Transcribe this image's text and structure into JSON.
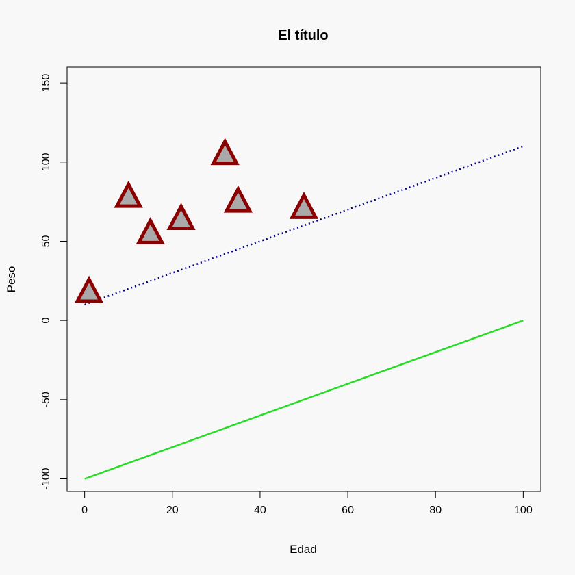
{
  "chart_data": {
    "type": "scatter",
    "title": "El título",
    "xlabel": "Edad",
    "ylabel": "Peso",
    "xlim": [
      -4,
      104
    ],
    "ylim": [
      -108,
      160
    ],
    "x_ticks": [
      0,
      20,
      40,
      60,
      80,
      100
    ],
    "y_ticks": [
      -100,
      -50,
      0,
      50,
      100,
      150
    ],
    "grid": false,
    "points": {
      "x": [
        1,
        10,
        15,
        22,
        32,
        35,
        50
      ],
      "y": [
        18,
        78,
        55,
        64,
        105,
        75,
        71
      ],
      "marker": "triangle",
      "fill_color": "#aaaaaa",
      "edge_color": "#8b0000"
    },
    "lines": [
      {
        "style": "dotted",
        "color": "#00008b",
        "x": [
          0,
          100
        ],
        "y": [
          10,
          110
        ]
      },
      {
        "style": "solid",
        "color": "#22dd22",
        "x": [
          0,
          100
        ],
        "y": [
          -100,
          0
        ]
      }
    ]
  }
}
